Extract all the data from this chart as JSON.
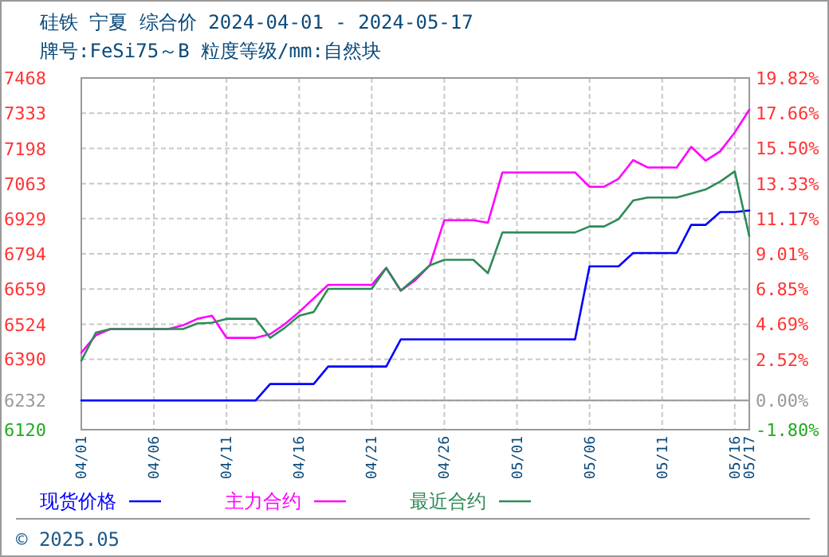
{
  "chart_data": {
    "type": "line",
    "title": "硅铁  宁夏  综合价 2024-04-01 - 2024-05-17",
    "subtitle": "牌号:FeSi75～B 粒度等级/mm:自然块",
    "xlim": [
      "2024-04-01",
      "2024-05-17"
    ],
    "xticks": [
      {
        "value": "2024-04-01",
        "label": "04/01"
      },
      {
        "value": "2024-04-06",
        "label": "04/06"
      },
      {
        "value": "2024-04-11",
        "label": "04/11"
      },
      {
        "value": "2024-04-16",
        "label": "04/16"
      },
      {
        "value": "2024-04-21",
        "label": "04/21"
      },
      {
        "value": "2024-04-26",
        "label": "04/26"
      },
      {
        "value": "2024-05-01",
        "label": "05/01"
      },
      {
        "value": "2024-05-06",
        "label": "05/06"
      },
      {
        "value": "2024-05-11",
        "label": "05/11"
      },
      {
        "value": "2024-05-16",
        "label": "05/16"
      },
      {
        "value": "2024-05-17",
        "label": "05/17"
      }
    ],
    "ylim": [
      6120,
      7468
    ],
    "yticks": [
      6120,
      6232,
      6390,
      6524,
      6659,
      6794,
      6929,
      7063,
      7198,
      7333,
      7468
    ],
    "y2lim": [
      -1.8,
      19.82
    ],
    "y2ticks": [
      {
        "value": -1.8,
        "label": "-1.80%"
      },
      {
        "value": 0,
        "label": "0.00%"
      },
      {
        "value": 2.52,
        "label": "2.52%"
      },
      {
        "value": 4.69,
        "label": "4.69%"
      },
      {
        "value": 6.85,
        "label": "6.85%"
      },
      {
        "value": 9.01,
        "label": "9.01%"
      },
      {
        "value": 11.17,
        "label": "11.17%"
      },
      {
        "value": 13.33,
        "label": "13.33%"
      },
      {
        "value": 15.5,
        "label": "15.50%"
      },
      {
        "value": 17.66,
        "label": "17.66%"
      },
      {
        "value": 19.82,
        "label": "19.82%"
      }
    ],
    "ref_lines": [
      {
        "axis": "y",
        "value": 6232,
        "color": "#999999"
      }
    ],
    "grid": true,
    "legend": "bottom",
    "line_style": "solid",
    "series": [
      {
        "name": "现货价格",
        "color": "#0000ff",
        "x": [
          "2024-04-01",
          "2024-04-13",
          "2024-04-14",
          "2024-04-17",
          "2024-04-18",
          "2024-04-22",
          "2024-04-23",
          "2024-05-05",
          "2024-05-06",
          "2024-05-08",
          "2024-05-09",
          "2024-05-12",
          "2024-05-13",
          "2024-05-14",
          "2024-05-15",
          "2024-05-16",
          "2024-05-17"
        ],
        "values": [
          6232,
          6232,
          6295,
          6295,
          6362,
          6362,
          6466,
          6466,
          6746,
          6746,
          6797,
          6797,
          6905,
          6905,
          6954,
          6954,
          6960
        ]
      },
      {
        "name": "主力合约",
        "color": "#ff00ff",
        "x": [
          "2024-04-01",
          "2024-04-02",
          "2024-04-03",
          "2024-04-07",
          "2024-04-08",
          "2024-04-09",
          "2024-04-10",
          "2024-04-11",
          "2024-04-13",
          "2024-04-14",
          "2024-04-15",
          "2024-04-16",
          "2024-04-18",
          "2024-04-21",
          "2024-04-22",
          "2024-04-23",
          "2024-04-24",
          "2024-04-25",
          "2024-04-26",
          "2024-04-28",
          "2024-04-29",
          "2024-04-30",
          "2024-05-05",
          "2024-05-06",
          "2024-05-07",
          "2024-05-08",
          "2024-05-09",
          "2024-05-10",
          "2024-05-12",
          "2024-05-13",
          "2024-05-14",
          "2024-05-15",
          "2024-05-16",
          "2024-05-17"
        ],
        "values": [
          6415,
          6482,
          6506,
          6506,
          6520,
          6545,
          6557,
          6472,
          6472,
          6486,
          6524,
          6571,
          6675,
          6675,
          6740,
          6653,
          6693,
          6750,
          6923,
          6923,
          6913,
          7106,
          7106,
          7051,
          7051,
          7082,
          7153,
          7125,
          7125,
          7204,
          7151,
          7187,
          7259,
          7346
        ]
      },
      {
        "name": "最近合约",
        "color": "#2e8b57",
        "x": [
          "2024-04-01",
          "2024-04-02",
          "2024-04-03",
          "2024-04-08",
          "2024-04-09",
          "2024-04-10",
          "2024-04-11",
          "2024-04-13",
          "2024-04-14",
          "2024-04-15",
          "2024-04-16",
          "2024-04-17",
          "2024-04-18",
          "2024-04-21",
          "2024-04-22",
          "2024-04-23",
          "2024-04-24",
          "2024-04-25",
          "2024-04-26",
          "2024-04-28",
          "2024-04-29",
          "2024-04-30",
          "2024-05-05",
          "2024-05-06",
          "2024-05-07",
          "2024-05-08",
          "2024-05-09",
          "2024-05-10",
          "2024-05-12",
          "2024-05-13",
          "2024-05-14",
          "2024-05-15",
          "2024-05-16",
          "2024-05-17"
        ],
        "values": [
          6384,
          6492,
          6506,
          6506,
          6527,
          6530,
          6545,
          6545,
          6472,
          6510,
          6557,
          6571,
          6660,
          6660,
          6740,
          6653,
          6700,
          6750,
          6771,
          6771,
          6720,
          6876,
          6876,
          6899,
          6899,
          6927,
          6998,
          7010,
          7010,
          7025,
          7041,
          7071,
          7110,
          6862
        ]
      }
    ],
    "annotations": [
      "© 2025.05"
    ]
  }
}
